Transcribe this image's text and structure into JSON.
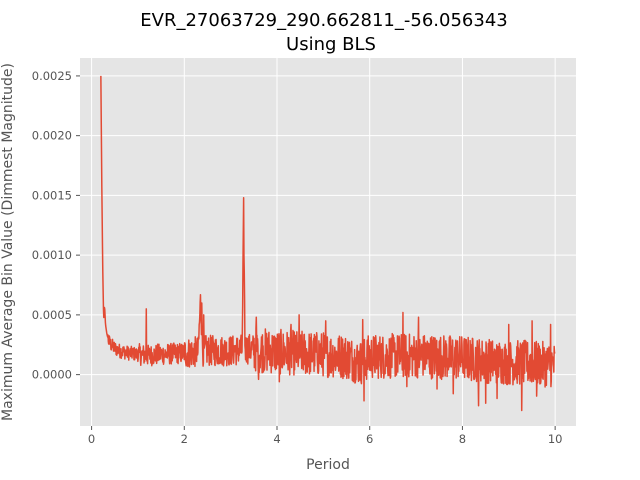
{
  "chart_data": {
    "type": "line",
    "title_line1": "EVR_27063729_290.662811_-56.056343",
    "title_line2": "Using BLS",
    "xlabel": "Period",
    "ylabel": "Maximum Average Bin Value (Dimmest Magnitude)",
    "xlim": [
      -0.25,
      10.45
    ],
    "ylim": [
      -0.00043,
      0.00265
    ],
    "xticks": [
      0,
      2,
      4,
      6,
      8,
      10
    ],
    "xtick_labels": [
      "0",
      "2",
      "4",
      "6",
      "8",
      "10"
    ],
    "yticks": [
      0.0,
      0.0005,
      0.001,
      0.0015,
      0.002,
      0.0025
    ],
    "ytick_labels": [
      "0.0000",
      "0.0005",
      "0.0010",
      "0.0015",
      "0.0020",
      "0.0025"
    ],
    "grid": true,
    "series": [
      {
        "color": "#E24A33",
        "x_start": 0.2,
        "x_end": 10.0,
        "anchors": [
          [
            0.2,
            0.0025
          ],
          [
            0.22,
            0.0016
          ],
          [
            0.24,
            0.0009
          ],
          [
            0.26,
            0.00046
          ],
          [
            0.28,
            0.00058
          ],
          [
            0.3,
            0.00042
          ],
          [
            0.33,
            0.00034
          ],
          [
            0.37,
            0.00028
          ],
          [
            0.42,
            0.00025
          ],
          [
            0.5,
            0.00022
          ],
          [
            0.6,
            0.0002
          ],
          [
            0.8,
            0.00018
          ],
          [
            1.0,
            0.00017
          ],
          [
            1.2,
            0.00016
          ],
          [
            1.5,
            0.00017
          ],
          [
            2.0,
            0.00018
          ],
          [
            2.3,
            0.00019
          ],
          [
            2.35,
            0.00062
          ],
          [
            2.4,
            0.0002
          ],
          [
            3.0,
            0.0002
          ],
          [
            3.25,
            0.00021
          ],
          [
            3.28,
            0.00136
          ],
          [
            3.31,
            0.00022
          ],
          [
            4.0,
            0.00019
          ],
          [
            5.0,
            0.00017
          ],
          [
            5.5,
            0.00015
          ],
          [
            5.8,
            0.0001
          ],
          [
            6.0,
            0.00015
          ],
          [
            7.0,
            0.00016
          ],
          [
            8.0,
            0.00014
          ],
          [
            8.4,
            0.00012
          ],
          [
            9.0,
            0.0001
          ],
          [
            9.3,
            0.0001
          ],
          [
            10.0,
            8e-05
          ]
        ],
        "spikes": [
          [
            1.18,
            0.00055
          ],
          [
            2.38,
            0.0006
          ],
          [
            2.42,
            0.0005
          ],
          [
            3.55,
            0.00048
          ],
          [
            4.48,
            0.0005
          ],
          [
            5.88,
            -0.00022
          ],
          [
            8.35,
            -0.00026
          ],
          [
            8.5,
            -0.00024
          ],
          [
            9.28,
            -0.0003
          ],
          [
            6.72,
            0.00052
          ],
          [
            7.05,
            0.00048
          ],
          [
            4.3,
            0.00042
          ],
          [
            5.05,
            0.00045
          ],
          [
            5.85,
            0.00046
          ],
          [
            3.6,
            -4e-05
          ],
          [
            4.05,
            -6e-05
          ],
          [
            6.8,
            -0.0001
          ],
          [
            7.45,
            -0.00012
          ],
          [
            9.0,
            0.00042
          ],
          [
            9.5,
            0.00045
          ],
          [
            9.9,
            0.00042
          ],
          [
            7.8,
            -0.00016
          ],
          [
            8.75,
            -0.0002
          ],
          [
            9.6,
            -0.00018
          ]
        ]
      }
    ]
  }
}
